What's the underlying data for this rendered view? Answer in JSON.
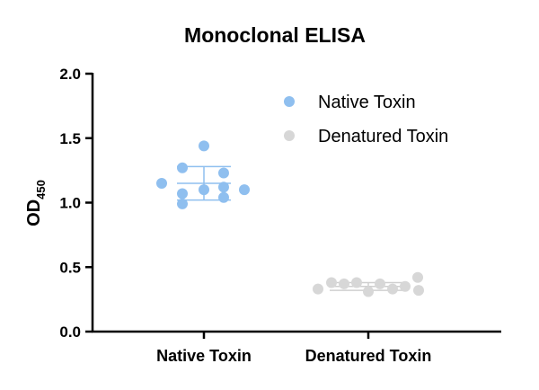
{
  "chart_data": {
    "type": "scatter",
    "title": "Monoclonal ELISA",
    "ylabel": "OD",
    "ylabel_subscript": "450",
    "ylim": [
      0,
      2
    ],
    "yticks": [
      "0.0",
      "0.5",
      "1.0",
      "1.5",
      "2.0"
    ],
    "categories": [
      "Native Toxin",
      "Denatured Toxin"
    ],
    "legend_position": "top-right",
    "series": [
      {
        "name": "Native Toxin",
        "color": "#8FBFEF",
        "category": 0,
        "values": [
          1.15,
          1.27,
          1.07,
          0.99,
          1.44,
          1.1,
          1.23,
          1.12,
          1.04,
          1.1
        ],
        "mean": 1.15,
        "sd": 0.13
      },
      {
        "name": "Denatured Toxin",
        "color": "#D7D7D7",
        "category": 1,
        "values": [
          0.33,
          0.38,
          0.37,
          0.38,
          0.31,
          0.37,
          0.33,
          0.35,
          0.42,
          0.32
        ],
        "mean": 0.35,
        "sd": 0.03
      }
    ]
  }
}
